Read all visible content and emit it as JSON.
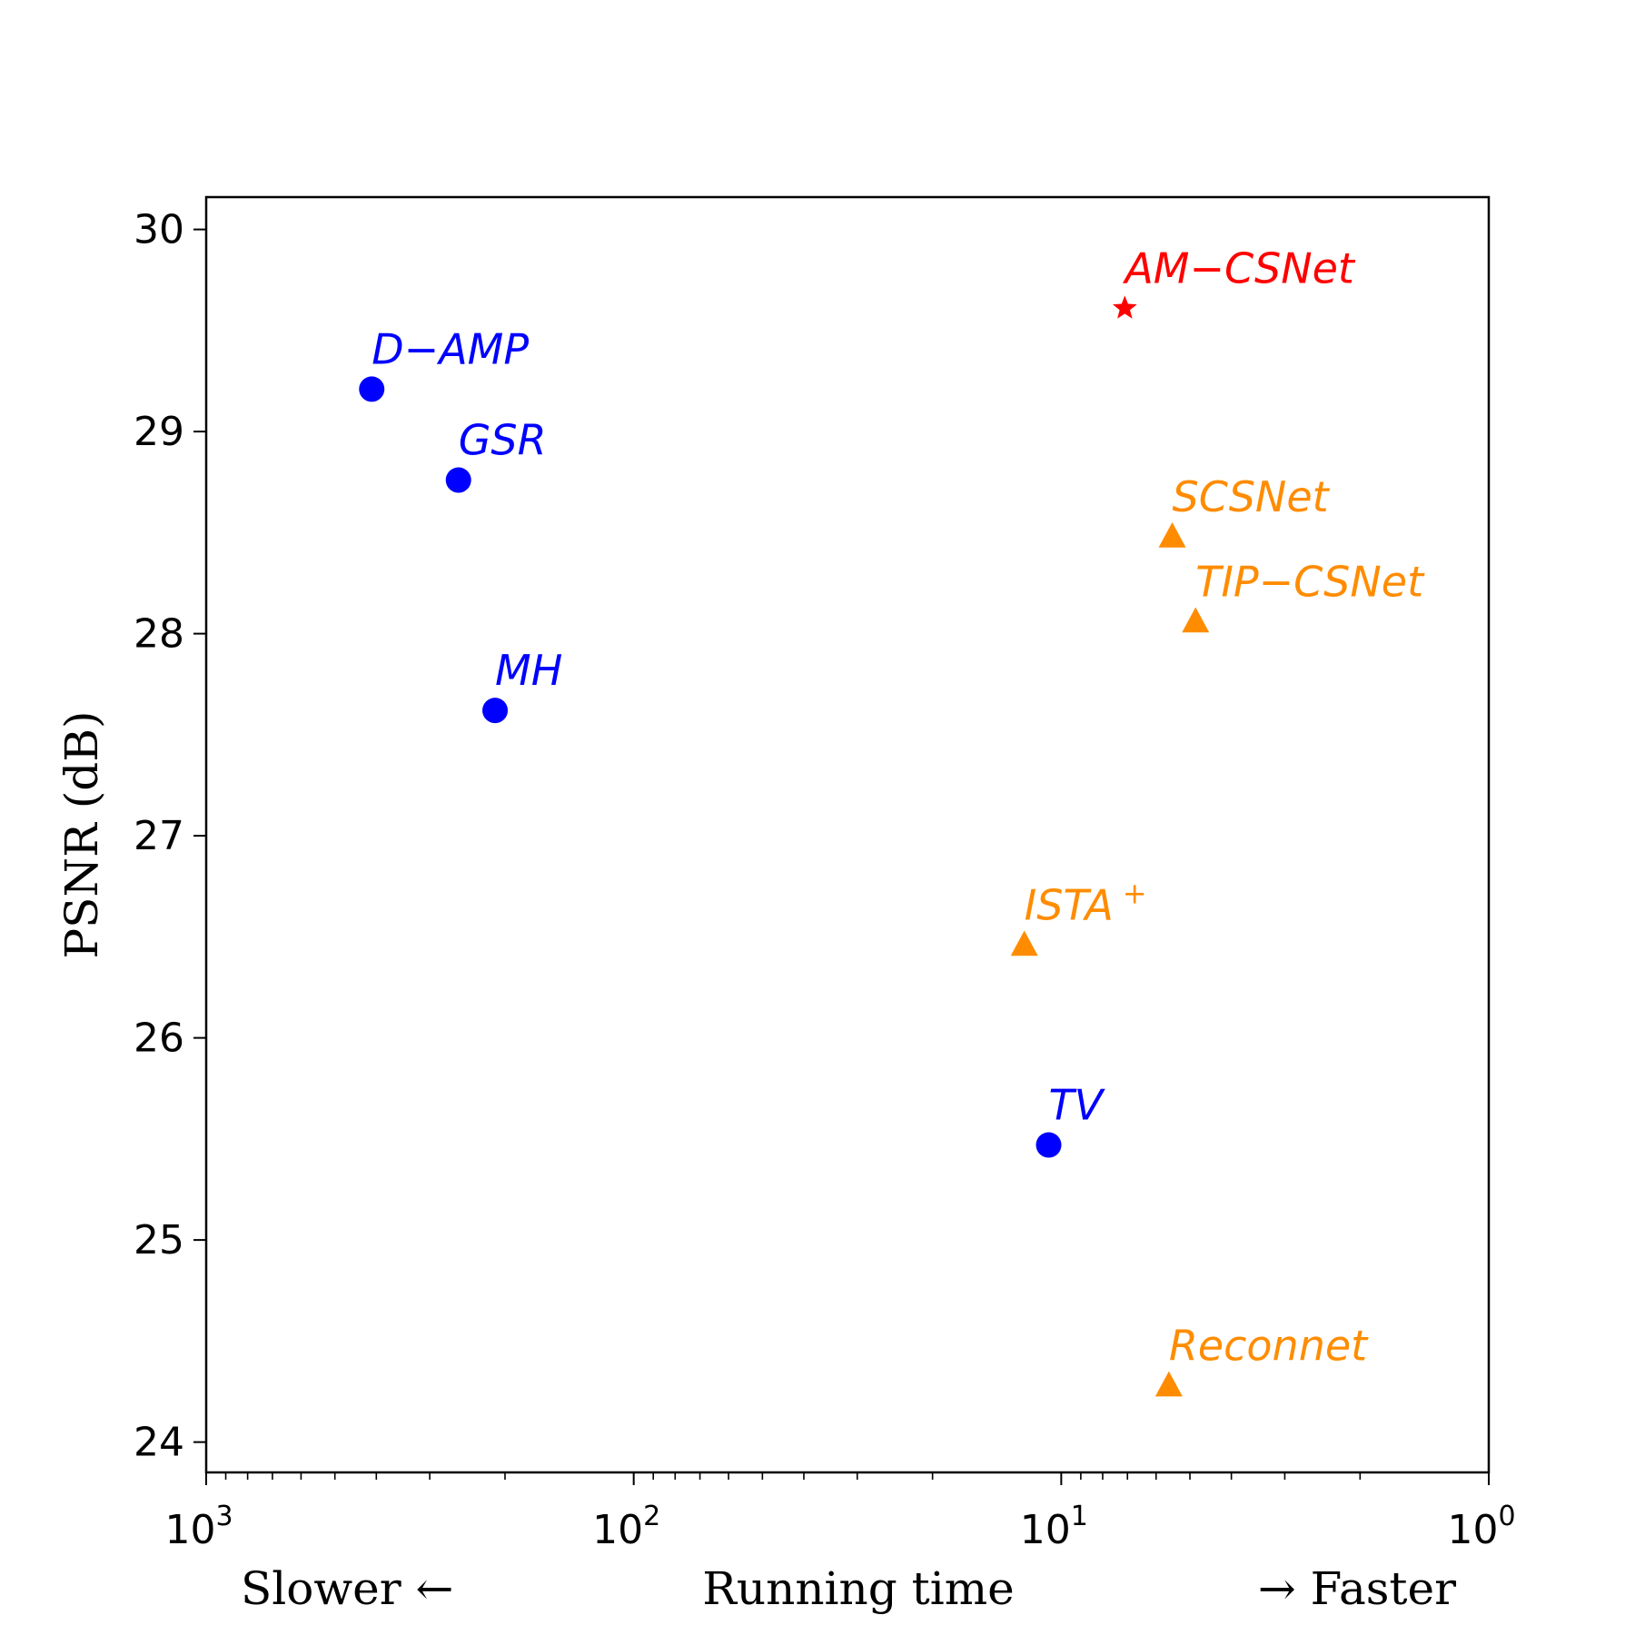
{
  "chart_data": {
    "type": "scatter",
    "xlabel": "Running time",
    "xlabel_left": "Slower ←",
    "xlabel_right": "→ Faster",
    "ylabel": "PSNR (dB)",
    "xscale": "log",
    "xaxis_reversed": true,
    "xlim": [
      1000,
      1
    ],
    "ylim": [
      23.85,
      30.16
    ],
    "xticks": [
      {
        "value": 1000,
        "base": "10",
        "exp": "3"
      },
      {
        "value": 100,
        "base": "10",
        "exp": "2"
      },
      {
        "value": 10,
        "base": "10",
        "exp": "1"
      },
      {
        "value": 1,
        "base": "10",
        "exp": "0"
      }
    ],
    "yticks": [
      "24",
      "25",
      "26",
      "27",
      "28",
      "29",
      "30"
    ],
    "grid": false,
    "legend": "none",
    "points": [
      {
        "label": "D−AMP",
        "x": 410,
        "y": 29.21,
        "marker": "circle",
        "color": "#0000ff"
      },
      {
        "label": "GSR",
        "x": 257,
        "y": 28.76,
        "marker": "circle",
        "color": "#0000ff"
      },
      {
        "label": "MH",
        "x": 211,
        "y": 27.62,
        "marker": "circle",
        "color": "#0000ff"
      },
      {
        "label": "TV",
        "x": 10.7,
        "y": 25.47,
        "marker": "circle",
        "color": "#0000ff"
      },
      {
        "label": "AM−CSNet",
        "x": 7.1,
        "y": 29.61,
        "marker": "star",
        "color": "#ff0000"
      },
      {
        "label": "SCSNet",
        "x": 5.5,
        "y": 28.48,
        "marker": "triangle",
        "color": "#ff8c00"
      },
      {
        "label": "TIP−CSNet",
        "x": 4.85,
        "y": 28.06,
        "marker": "triangle",
        "color": "#ff8c00"
      },
      {
        "label": "ISTA",
        "label_sup": "+",
        "x": 12.2,
        "y": 26.46,
        "marker": "triangle",
        "color": "#ff8c00"
      },
      {
        "label": "Reconnet",
        "x": 5.6,
        "y": 24.28,
        "marker": "triangle",
        "color": "#ff8c00"
      }
    ]
  }
}
